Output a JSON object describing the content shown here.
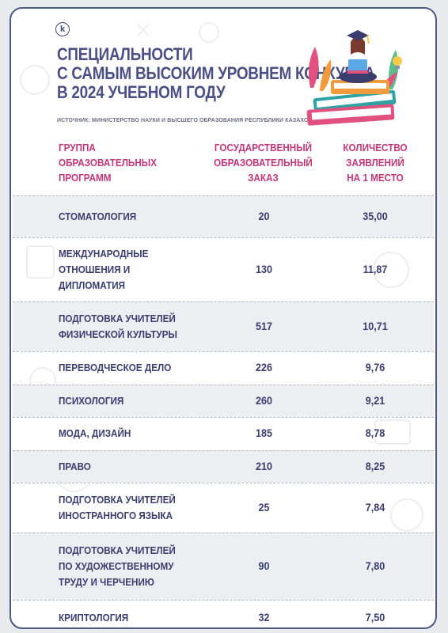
{
  "header": {
    "logo_letter": "k",
    "title_lines": [
      "СПЕЦИАЛЬНОСТИ",
      "С САМЫМ ВЫСОКИМ УРОВНЕМ КОНКУРСА",
      "В 2024 УЧЕБНОМ ГОДУ"
    ],
    "source": "ИСТОЧНИК: МИНИСТЕРСТВО НАУКИ И ВЫСШЕГО ОБРАЗОВАНИЯ РЕСПУБЛИКИ КАЗАХСТАН"
  },
  "table": {
    "columns": [
      {
        "lines": [
          "ГРУППА",
          "ОБРАЗОВАТЕЛЬНЫХ",
          "ПРОГРАММ"
        ]
      },
      {
        "lines": [
          "ГОСУДАРСТВЕННЫЙ",
          "ОБРАЗОВАТЕЛЬНЫЙ",
          "ЗАКАЗ"
        ]
      },
      {
        "lines": [
          "КОЛИЧЕСТВО",
          "ЗАЯВЛЕНИЙ",
          "НА 1 МЕСТО"
        ]
      }
    ],
    "rows": [
      {
        "name": [
          "СТОМАТОЛОГИЯ"
        ],
        "order": "20",
        "apps": "35,00"
      },
      {
        "name": [
          "МЕЖДУНАРОДНЫЕ",
          "ОТНОШЕНИЯ И",
          "ДИПЛОМАТИЯ"
        ],
        "order": "130",
        "apps": "11,87"
      },
      {
        "name": [
          "ПОДГОТОВКА УЧИТЕЛЕЙ",
          "ФИЗИЧЕСКОЙ КУЛЬТУРЫ"
        ],
        "order": "517",
        "apps": "10,71"
      },
      {
        "name": [
          "ПЕРЕВОДЧЕСКОЕ ДЕЛО"
        ],
        "order": "226",
        "apps": "9,76"
      },
      {
        "name": [
          "ПСИХОЛОГИЯ"
        ],
        "order": "260",
        "apps": "9,21"
      },
      {
        "name": [
          "МОДА, ДИЗАЙН"
        ],
        "order": "185",
        "apps": "8,78"
      },
      {
        "name": [
          "ПРАВО"
        ],
        "order": "210",
        "apps": "8,25"
      },
      {
        "name": [
          "ПОДГОТОВКА УЧИТЕЛЕЙ",
          "ИНОСТРАННОГО ЯЗЫКА"
        ],
        "order": "25",
        "apps": "7,84"
      },
      {
        "name": [
          "ПОДГОТОВКА УЧИТЕЛЕЙ",
          "ПО ХУДОЖЕСТВЕННОМУ",
          "ТРУДУ И ЧЕРЧЕНИЮ"
        ],
        "order": "90",
        "apps": "7,80"
      },
      {
        "name": [
          "КРИПТОЛОГИЯ"
        ],
        "order": "32",
        "apps": "7,50"
      }
    ]
  },
  "colors": {
    "title": "#4b4f85",
    "header_text": "#c2357a",
    "body_text": "#3a3d6e",
    "frame": "#4d5a85",
    "row_shade": "#edeef2"
  }
}
